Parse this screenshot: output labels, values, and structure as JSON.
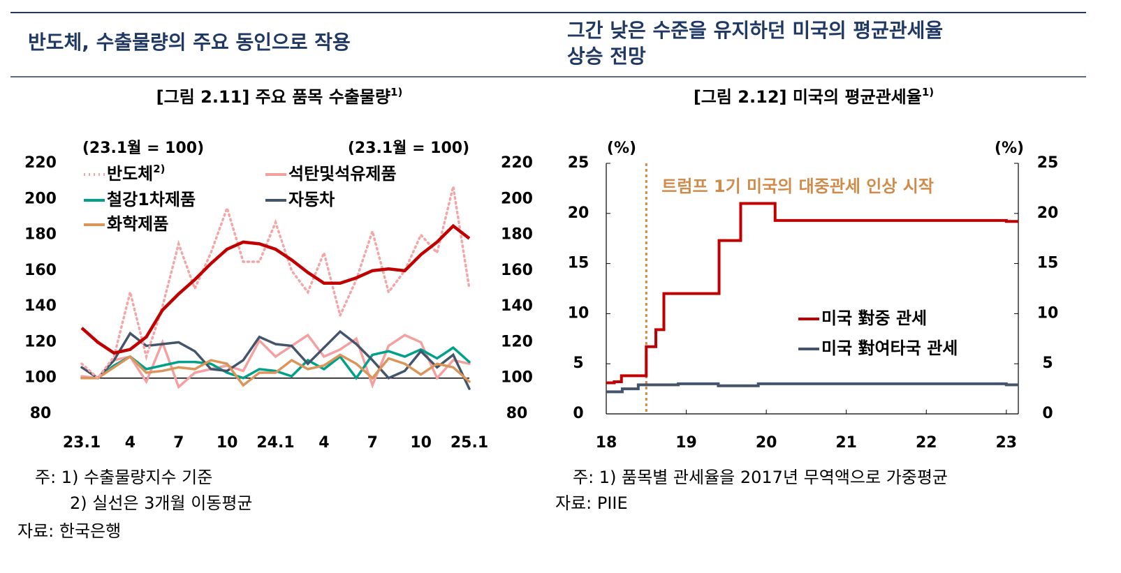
{
  "headings": {
    "left": "반도체, 수출물량의 주요 동인으로 작용",
    "right": [
      "그간 낮은 수준을 유지하던 미국의 평균관세율",
      "상승 전망"
    ]
  },
  "chart_data": [
    {
      "type": "line",
      "title": "[그림 2.11] 주요 품목 수출물량",
      "title_note": "1)",
      "units": "(23.1월 = 100)",
      "units2": "(23.1월 = 100)",
      "categories": [
        "23.1",
        null,
        null,
        "4",
        null,
        null,
        "7",
        null,
        null,
        "10",
        null,
        null,
        "24.1",
        null,
        null,
        "4",
        null,
        null,
        "7",
        null,
        null,
        "10",
        null,
        null,
        "25.1"
      ],
      "ylim": [
        80,
        220
      ],
      "yticks": [
        80,
        100,
        120,
        140,
        160,
        180,
        200,
        220
      ],
      "y2lim": [
        80,
        220
      ],
      "y2ticks": [
        80,
        100,
        120,
        140,
        160,
        180,
        200,
        220
      ],
      "reference_line": 100,
      "series": [
        {
          "name": "반도체",
          "name_note": "2)",
          "color": "#f4a6a6",
          "dash": "dotted",
          "values": [
            108,
            100,
            112,
            148,
            112,
            140,
            175,
            150,
            170,
            195,
            165,
            165,
            187,
            160,
            148,
            170,
            135,
            155,
            182,
            148,
            160,
            180,
            170,
            207,
            150
          ],
          "moving_average": {
            "color": "#c00000",
            "values": [
              128,
              120,
              114,
              116,
              123,
              138,
              147,
              155,
              164,
              172,
              176,
              175,
              172,
              166,
              159,
              153,
              153,
              156,
              160,
              161,
              160,
              169,
              176,
              185,
              178
            ]
          }
        },
        {
          "name": "석탄및석유제품",
          "color": "#f4a0a0",
          "dash": "solid",
          "values": [
            101,
            100,
            110,
            112,
            98,
            120,
            95,
            103,
            105,
            107,
            104,
            121,
            112,
            118,
            124,
            112,
            116,
            122,
            96,
            118,
            124,
            120,
            100,
            110,
            108
          ]
        },
        {
          "name": "철강1차제품",
          "color": "#00a08a",
          "dash": "solid",
          "values": [
            100,
            100,
            107,
            112,
            105,
            107,
            109,
            109,
            108,
            103,
            100,
            105,
            104,
            101,
            110,
            105,
            112,
            100,
            113,
            115,
            112,
            116,
            111,
            117,
            109
          ]
        },
        {
          "name": "자동차",
          "color": "#44546a",
          "dash": "solid",
          "values": [
            106,
            100,
            110,
            125,
            118,
            119,
            120,
            115,
            105,
            104,
            110,
            123,
            119,
            118,
            108,
            117,
            126,
            119,
            110,
            100,
            104,
            115,
            106,
            113,
            94
          ]
        },
        {
          "name": "화학제품",
          "color": "#d9955a",
          "dash": "solid",
          "values": [
            100,
            100,
            106,
            112,
            103,
            104,
            106,
            105,
            110,
            108,
            96,
            103,
            103,
            110,
            105,
            107,
            113,
            108,
            100,
            111,
            108,
            102,
            108,
            106,
            98
          ]
        }
      ],
      "notes": [
        "주: 1) 수출물량지수 기준",
        "2) 실선은 3개월 이동평균"
      ],
      "source": "자료: 한국은행"
    },
    {
      "type": "step",
      "title": "[그림 2.12] 미국의 평균관세율",
      "title_note": "1)",
      "units": "(%)",
      "units2": "(%)",
      "xlim": [
        18,
        23.15
      ],
      "xticks": [
        18,
        19,
        20,
        21,
        22,
        23
      ],
      "ylim": [
        0,
        25
      ],
      "yticks": [
        0,
        5,
        10,
        15,
        20,
        25
      ],
      "y2lim": [
        0,
        25
      ],
      "y2ticks": [
        0,
        5,
        10,
        15,
        20,
        25
      ],
      "annotation": {
        "text": "트럼프 1기 미국의 대중관세 인상 시작",
        "x": 18.5,
        "color": "#d08b4a"
      },
      "series": [
        {
          "name": "미국 對중 관세",
          "color": "#c00000",
          "x": [
            18,
            18.1,
            18.19,
            18.5,
            18.62,
            18.72,
            19.41,
            19.68,
            20.11,
            23.0
          ],
          "values": [
            3.1,
            3.2,
            3.8,
            6.7,
            8.4,
            12,
            17.3,
            21,
            19.3,
            19.2
          ]
        },
        {
          "name": "미국 對여타국 관세",
          "color": "#44546a",
          "x": [
            18,
            18.2,
            18.4,
            18.9,
            19.4,
            19.9,
            21.2,
            23.0
          ],
          "values": [
            2.2,
            2.5,
            2.9,
            3.0,
            2.8,
            3.0,
            3.0,
            2.9
          ]
        }
      ],
      "notes": [
        "주: 1) 품목별 관세율을 2017년 무역액으로 가중평균"
      ],
      "source": "자료: PIIE"
    }
  ]
}
